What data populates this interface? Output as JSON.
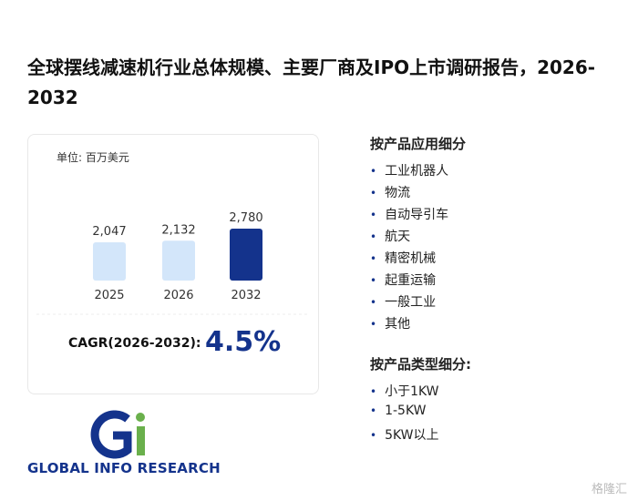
{
  "header": {
    "title": "全球摆线减速机行业总体规模、主要厂商及IPO上市调研报告，2026-2032"
  },
  "chart_data": {
    "type": "bar",
    "unit": "单位: 百万美元",
    "categories": [
      "2025",
      "2026",
      "2032"
    ],
    "values": [
      2047,
      2132,
      2780
    ],
    "value_labels": [
      "2,047",
      "2,132",
      "2,780"
    ],
    "colors": [
      "#d3e6fa",
      "#d3e6fa",
      "#14338c"
    ]
  },
  "cagr": {
    "label": "CAGR(2026-2032):",
    "value": "4.5%"
  },
  "segments": [
    {
      "heading": "按产品应用细分",
      "items": [
        "工业机器人",
        "物流",
        "自动导引车",
        "航天",
        "精密机械",
        "起重运输",
        "一般工业",
        "其他"
      ]
    },
    {
      "heading": "按产品类型细分:",
      "items": [
        "小于1KW",
        "1-5KW",
        "5KW以上"
      ]
    }
  ],
  "logo": {
    "text": "GLOBAL INFO RESEARCH"
  },
  "brand": "格隆汇"
}
